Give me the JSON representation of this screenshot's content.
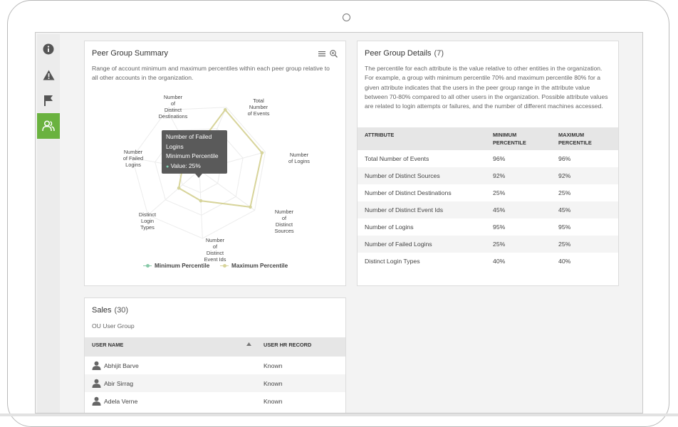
{
  "sidebar": {
    "items": [
      {
        "icon": "info-icon",
        "active": false
      },
      {
        "icon": "warning-icon",
        "active": false
      },
      {
        "icon": "flag-icon",
        "active": false
      },
      {
        "icon": "users-icon",
        "active": true
      }
    ]
  },
  "summary": {
    "title": "Peer Group Summary",
    "description": "Range of account minimum and maximum percentiles within each peer group relative to all other accounts in the organization.",
    "toolbar": [
      "menu-icon",
      "zoom-icon"
    ],
    "tooltip": {
      "title": "Number of Failed Logins",
      "series": "Minimum Percentile",
      "value": "Value: 25%"
    },
    "legend": {
      "min": "Minimum Percentile",
      "max": "Maximum Percentile"
    }
  },
  "chart_data": {
    "type": "radar",
    "categories": [
      "Number of Distinct Destinations",
      "Total Number of Events",
      "Number of Logins",
      "Number of Distinct Sources",
      "Number of Distinct Event Ids",
      "Distinct Login Types",
      "Number of Failed Logins"
    ],
    "series": [
      {
        "name": "Minimum Percentile",
        "values": [
          25,
          96,
          95,
          92,
          45,
          40,
          25
        ],
        "color": "#87c9a8"
      },
      {
        "name": "Maximum Percentile",
        "values": [
          25,
          96,
          95,
          92,
          45,
          40,
          25
        ],
        "color": "#d8d49a"
      }
    ],
    "ylim": [
      0,
      100
    ]
  },
  "details": {
    "title": "Peer Group Details",
    "count": "(7)",
    "description": "The percentile for each attribute is the value relative to other entities in the organization. For example, a group with minimum percentile 70% and maximum percentile 80% for a given attribute indicates that the users in the peer group range in the attribute value between 70-80% compared to all other users in the organization. Possible attribute values are related to login attempts or failures, and the number of different machines accessed.",
    "columns": [
      "Attribute",
      "Minimum Percentile",
      "Maximum Percentile"
    ],
    "rows": [
      [
        "Total Number of Events",
        "96%",
        "96%"
      ],
      [
        "Number of Distinct Sources",
        "92%",
        "92%"
      ],
      [
        "Number of Distinct Destinations",
        "25%",
        "25%"
      ],
      [
        "Number of Distinct Event Ids",
        "45%",
        "45%"
      ],
      [
        "Number of Logins",
        "95%",
        "95%"
      ],
      [
        "Number of Failed Logins",
        "25%",
        "25%"
      ],
      [
        "Distinct Login Types",
        "40%",
        "40%"
      ]
    ]
  },
  "sales": {
    "title": "Sales",
    "count": "(30)",
    "subtitle": "OU User Group",
    "columns": [
      "User Name",
      "User HR Record"
    ],
    "rows": [
      [
        "Abhijit Barve",
        "Known"
      ],
      [
        "Abir Sirrag",
        "Known"
      ],
      [
        "Adela Verne",
        "Known"
      ]
    ]
  }
}
